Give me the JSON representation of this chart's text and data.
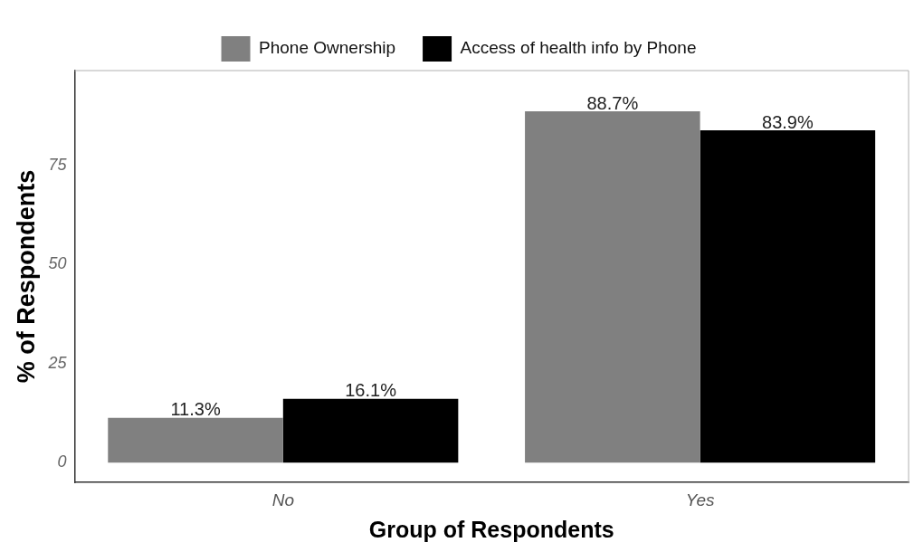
{
  "chart_data": {
    "type": "bar",
    "xlabel": "Group of Respondents",
    "ylabel": "% of Respondents",
    "categories": [
      "No",
      "Yes"
    ],
    "series": [
      {
        "name": "Phone Ownership",
        "color": "#808080",
        "values": [
          11.3,
          88.7
        ],
        "value_labels": [
          "11.3%",
          "88.7%"
        ]
      },
      {
        "name": "Access of health info by Phone",
        "color": "#000000",
        "values": [
          16.1,
          83.9
        ],
        "value_labels": [
          "16.1%",
          "83.9%"
        ]
      }
    ],
    "ylim": [
      -5,
      99
    ],
    "yticks": [
      0,
      25,
      50,
      75
    ],
    "grid": false,
    "legend": "top"
  }
}
